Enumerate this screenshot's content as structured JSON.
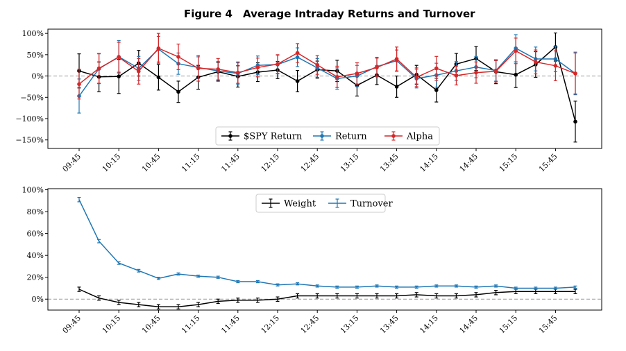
{
  "title_label": "Figure 4",
  "title_text": "Average Intraday Returns and Turnover",
  "colors": {
    "spy": "#000000",
    "ret": "#1f77b4",
    "alpha": "#d62728",
    "weight": "#000000",
    "turnover": "#1f77b4",
    "zeroline": "#999999"
  },
  "chart_data": [
    {
      "type": "line",
      "title": "",
      "xlabel": "",
      "ylabel": "",
      "x": [
        "09:45",
        "10:00",
        "10:15",
        "10:30",
        "10:45",
        "11:00",
        "11:15",
        "11:30",
        "11:45",
        "12:00",
        "12:15",
        "12:30",
        "12:45",
        "13:00",
        "13:15",
        "13:30",
        "13:45",
        "14:00",
        "14:15",
        "14:30",
        "14:45",
        "15:00",
        "15:15",
        "15:30",
        "15:45",
        "16:00"
      ],
      "x_tick_labels": [
        "09:45",
        "10:15",
        "10:45",
        "11:15",
        "11:45",
        "12:15",
        "12:45",
        "13:15",
        "13:45",
        "14:15",
        "14:45",
        "15:15",
        "15:45"
      ],
      "ylim": [
        -170,
        110
      ],
      "y_ticks": [
        100,
        50,
        0,
        -50,
        -100,
        -150
      ],
      "y_tick_labels": [
        "100%",
        "50%",
        "0%",
        "−50%",
        "−100%",
        "−150%"
      ],
      "legend_position": "lower-center",
      "series": [
        {
          "name": "$SPY Return",
          "key": "spy",
          "values": [
            12,
            -2,
            -1,
            30,
            -3,
            -37,
            -3,
            10,
            -1,
            9,
            14,
            -12,
            15,
            12,
            -22,
            2,
            -25,
            3,
            -33,
            28,
            41,
            10,
            3,
            27,
            68,
            -107
          ],
          "errors": [
            40,
            35,
            40,
            30,
            30,
            25,
            28,
            22,
            25,
            22,
            20,
            25,
            20,
            25,
            25,
            22,
            25,
            22,
            28,
            25,
            28,
            28,
            30,
            30,
            33,
            48
          ]
        },
        {
          "name": "Return",
          "key": "ret",
          "values": [
            -47,
            17,
            45,
            18,
            63,
            29,
            20,
            12,
            6,
            25,
            27,
            44,
            19,
            -6,
            0,
            22,
            36,
            -6,
            2,
            12,
            21,
            13,
            65,
            40,
            40,
            6
          ],
          "errors": [
            40,
            35,
            38,
            28,
            30,
            25,
            25,
            22,
            25,
            22,
            22,
            22,
            22,
            25,
            25,
            22,
            25,
            22,
            28,
            22,
            25,
            25,
            32,
            28,
            30,
            50
          ]
        },
        {
          "name": "Alpha",
          "key": "alpha",
          "values": [
            -19,
            18,
            44,
            11,
            65,
            45,
            18,
            16,
            8,
            20,
            28,
            54,
            26,
            -2,
            6,
            20,
            40,
            -3,
            18,
            1,
            8,
            11,
            59,
            33,
            24,
            6
          ],
          "errors": [
            35,
            35,
            35,
            30,
            35,
            30,
            30,
            25,
            25,
            22,
            22,
            22,
            22,
            25,
            25,
            22,
            28,
            22,
            28,
            22,
            25,
            25,
            30,
            28,
            35,
            48
          ]
        }
      ]
    },
    {
      "type": "line",
      "title": "",
      "xlabel": "",
      "ylabel": "",
      "x": [
        "09:45",
        "10:00",
        "10:15",
        "10:30",
        "10:45",
        "11:00",
        "11:15",
        "11:30",
        "11:45",
        "12:00",
        "12:15",
        "12:30",
        "12:45",
        "13:00",
        "13:15",
        "13:30",
        "13:45",
        "14:00",
        "14:15",
        "14:30",
        "14:45",
        "15:00",
        "15:15",
        "15:30",
        "15:45",
        "16:00"
      ],
      "x_tick_labels": [
        "09:45",
        "10:15",
        "10:45",
        "11:15",
        "11:45",
        "12:15",
        "12:45",
        "13:15",
        "13:45",
        "14:15",
        "14:45",
        "15:15",
        "15:45"
      ],
      "ylim": [
        -10,
        101
      ],
      "y_ticks": [
        100,
        80,
        60,
        40,
        20,
        0
      ],
      "y_tick_labels": [
        "100%",
        "80%",
        "60%",
        "40%",
        "20%",
        "0%"
      ],
      "legend_position": "upper-center",
      "series": [
        {
          "name": "Weight",
          "key": "weight",
          "values": [
            9,
            1,
            -3,
            -5,
            -7,
            -7,
            -5,
            -2,
            -1,
            -1,
            0,
            3,
            3,
            3,
            3,
            3,
            3,
            4,
            3,
            3,
            4,
            6,
            7,
            7,
            7,
            7
          ],
          "errors": [
            2,
            2,
            2,
            2,
            2,
            2,
            2,
            2,
            2,
            2,
            2,
            2,
            2,
            2,
            2,
            2,
            2,
            2,
            2,
            2,
            2,
            2,
            2,
            2,
            2,
            2
          ]
        },
        {
          "name": "Turnover",
          "key": "turnover",
          "values": [
            91,
            53,
            33,
            26,
            19,
            23,
            21,
            20,
            16,
            16,
            13,
            14,
            12,
            11,
            11,
            12,
            11,
            11,
            12,
            12,
            11,
            12,
            10,
            10,
            10,
            11
          ],
          "errors": [
            2,
            1.5,
            1.2,
            1.2,
            1,
            1,
            1,
            1,
            1,
            1,
            1,
            1,
            1,
            1,
            1,
            1,
            1,
            1,
            1,
            1,
            1,
            1,
            1,
            1,
            1,
            1
          ]
        }
      ]
    }
  ]
}
